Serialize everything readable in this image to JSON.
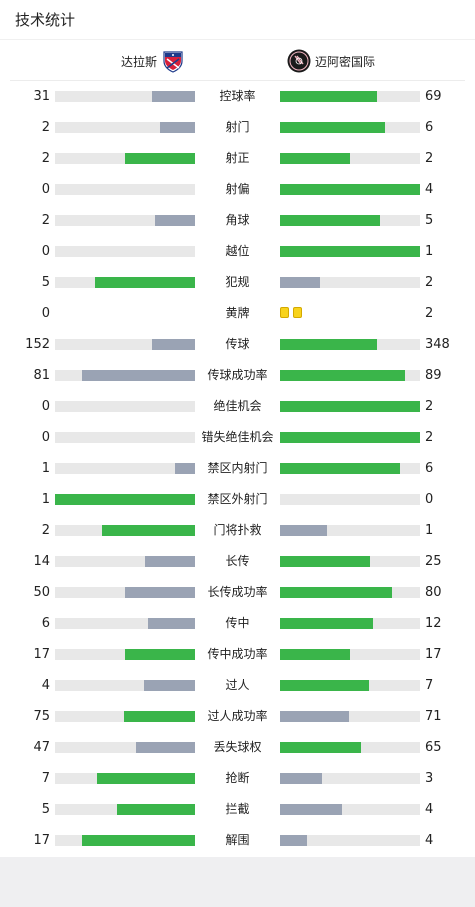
{
  "header": {
    "title": "技术统计"
  },
  "teams": {
    "home": {
      "name": "达拉斯",
      "logo_icon": "fc-dallas-crest-icon"
    },
    "away": {
      "name": "迈阿密国际",
      "logo_icon": "inter-miami-crest-icon"
    }
  },
  "colors": {
    "winner": "#3ab54a",
    "loser": "#9aa3b4",
    "track": "#e8e8e8",
    "yellow_card": "#f8d31c"
  },
  "stats": [
    {
      "label": "控球率",
      "home": "31",
      "away": "69",
      "home_pct": 0.31,
      "away_pct": 0.69
    },
    {
      "label": "射门",
      "home": "2",
      "away": "6"
    },
    {
      "label": "射正",
      "home": "2",
      "away": "2"
    },
    {
      "label": "射偏",
      "home": "0",
      "away": "4"
    },
    {
      "label": "角球",
      "home": "2",
      "away": "5"
    },
    {
      "label": "越位",
      "home": "0",
      "away": "1"
    },
    {
      "label": "犯规",
      "home": "5",
      "away": "2"
    },
    {
      "label": "黄牌",
      "home": "0",
      "away": "2",
      "type": "cards"
    },
    {
      "label": "传球",
      "home": "152",
      "away": "348"
    },
    {
      "label": "传球成功率",
      "home": "81",
      "away": "89",
      "home_pct": 0.81,
      "away_pct": 0.89
    },
    {
      "label": "绝佳机会",
      "home": "0",
      "away": "2"
    },
    {
      "label": "错失绝佳机会",
      "home": "0",
      "away": "2"
    },
    {
      "label": "禁区内射门",
      "home": "1",
      "away": "6"
    },
    {
      "label": "禁区外射门",
      "home": "1",
      "away": "0"
    },
    {
      "label": "门将扑救",
      "home": "2",
      "away": "1"
    },
    {
      "label": "长传",
      "home": "14",
      "away": "25"
    },
    {
      "label": "长传成功率",
      "home": "50",
      "away": "80",
      "home_pct": 0.5,
      "away_pct": 0.8
    },
    {
      "label": "传中",
      "home": "6",
      "away": "12"
    },
    {
      "label": "传中成功率",
      "home": "17",
      "away": "17",
      "home_pct": 0.5,
      "away_pct": 0.5
    },
    {
      "label": "过人",
      "home": "4",
      "away": "7"
    },
    {
      "label": "过人成功率",
      "home": "75",
      "away": "71",
      "home_pct": 0.51,
      "away_pct": 0.49
    },
    {
      "label": "丢失球权",
      "home": "47",
      "away": "65"
    },
    {
      "label": "抢断",
      "home": "7",
      "away": "3"
    },
    {
      "label": "拦截",
      "home": "5",
      "away": "4"
    },
    {
      "label": "解围",
      "home": "17",
      "away": "4"
    }
  ]
}
